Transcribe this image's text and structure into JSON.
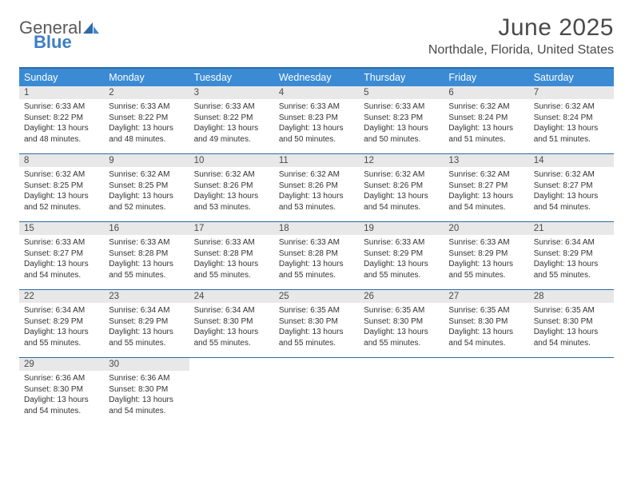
{
  "logo": {
    "line1": "General",
    "line2": "Blue"
  },
  "title": "June 2025",
  "location": "Northdale, Florida, United States",
  "colors": {
    "header_bg": "#3b8bd4",
    "header_text": "#ffffff",
    "border": "#2d6aa6",
    "daynum_bg": "#e8e8e8",
    "text": "#333333",
    "logo_gray": "#5a5a5a",
    "logo_blue": "#3b7fc4"
  },
  "day_labels": [
    "Sunday",
    "Monday",
    "Tuesday",
    "Wednesday",
    "Thursday",
    "Friday",
    "Saturday"
  ],
  "weeks": [
    [
      {
        "n": "1",
        "sr": "Sunrise: 6:33 AM",
        "ss": "Sunset: 8:22 PM",
        "dl": "Daylight: 13 hours and 48 minutes."
      },
      {
        "n": "2",
        "sr": "Sunrise: 6:33 AM",
        "ss": "Sunset: 8:22 PM",
        "dl": "Daylight: 13 hours and 48 minutes."
      },
      {
        "n": "3",
        "sr": "Sunrise: 6:33 AM",
        "ss": "Sunset: 8:22 PM",
        "dl": "Daylight: 13 hours and 49 minutes."
      },
      {
        "n": "4",
        "sr": "Sunrise: 6:33 AM",
        "ss": "Sunset: 8:23 PM",
        "dl": "Daylight: 13 hours and 50 minutes."
      },
      {
        "n": "5",
        "sr": "Sunrise: 6:33 AM",
        "ss": "Sunset: 8:23 PM",
        "dl": "Daylight: 13 hours and 50 minutes."
      },
      {
        "n": "6",
        "sr": "Sunrise: 6:32 AM",
        "ss": "Sunset: 8:24 PM",
        "dl": "Daylight: 13 hours and 51 minutes."
      },
      {
        "n": "7",
        "sr": "Sunrise: 6:32 AM",
        "ss": "Sunset: 8:24 PM",
        "dl": "Daylight: 13 hours and 51 minutes."
      }
    ],
    [
      {
        "n": "8",
        "sr": "Sunrise: 6:32 AM",
        "ss": "Sunset: 8:25 PM",
        "dl": "Daylight: 13 hours and 52 minutes."
      },
      {
        "n": "9",
        "sr": "Sunrise: 6:32 AM",
        "ss": "Sunset: 8:25 PM",
        "dl": "Daylight: 13 hours and 52 minutes."
      },
      {
        "n": "10",
        "sr": "Sunrise: 6:32 AM",
        "ss": "Sunset: 8:26 PM",
        "dl": "Daylight: 13 hours and 53 minutes."
      },
      {
        "n": "11",
        "sr": "Sunrise: 6:32 AM",
        "ss": "Sunset: 8:26 PM",
        "dl": "Daylight: 13 hours and 53 minutes."
      },
      {
        "n": "12",
        "sr": "Sunrise: 6:32 AM",
        "ss": "Sunset: 8:26 PM",
        "dl": "Daylight: 13 hours and 54 minutes."
      },
      {
        "n": "13",
        "sr": "Sunrise: 6:32 AM",
        "ss": "Sunset: 8:27 PM",
        "dl": "Daylight: 13 hours and 54 minutes."
      },
      {
        "n": "14",
        "sr": "Sunrise: 6:32 AM",
        "ss": "Sunset: 8:27 PM",
        "dl": "Daylight: 13 hours and 54 minutes."
      }
    ],
    [
      {
        "n": "15",
        "sr": "Sunrise: 6:33 AM",
        "ss": "Sunset: 8:27 PM",
        "dl": "Daylight: 13 hours and 54 minutes."
      },
      {
        "n": "16",
        "sr": "Sunrise: 6:33 AM",
        "ss": "Sunset: 8:28 PM",
        "dl": "Daylight: 13 hours and 55 minutes."
      },
      {
        "n": "17",
        "sr": "Sunrise: 6:33 AM",
        "ss": "Sunset: 8:28 PM",
        "dl": "Daylight: 13 hours and 55 minutes."
      },
      {
        "n": "18",
        "sr": "Sunrise: 6:33 AM",
        "ss": "Sunset: 8:28 PM",
        "dl": "Daylight: 13 hours and 55 minutes."
      },
      {
        "n": "19",
        "sr": "Sunrise: 6:33 AM",
        "ss": "Sunset: 8:29 PM",
        "dl": "Daylight: 13 hours and 55 minutes."
      },
      {
        "n": "20",
        "sr": "Sunrise: 6:33 AM",
        "ss": "Sunset: 8:29 PM",
        "dl": "Daylight: 13 hours and 55 minutes."
      },
      {
        "n": "21",
        "sr": "Sunrise: 6:34 AM",
        "ss": "Sunset: 8:29 PM",
        "dl": "Daylight: 13 hours and 55 minutes."
      }
    ],
    [
      {
        "n": "22",
        "sr": "Sunrise: 6:34 AM",
        "ss": "Sunset: 8:29 PM",
        "dl": "Daylight: 13 hours and 55 minutes."
      },
      {
        "n": "23",
        "sr": "Sunrise: 6:34 AM",
        "ss": "Sunset: 8:29 PM",
        "dl": "Daylight: 13 hours and 55 minutes."
      },
      {
        "n": "24",
        "sr": "Sunrise: 6:34 AM",
        "ss": "Sunset: 8:30 PM",
        "dl": "Daylight: 13 hours and 55 minutes."
      },
      {
        "n": "25",
        "sr": "Sunrise: 6:35 AM",
        "ss": "Sunset: 8:30 PM",
        "dl": "Daylight: 13 hours and 55 minutes."
      },
      {
        "n": "26",
        "sr": "Sunrise: 6:35 AM",
        "ss": "Sunset: 8:30 PM",
        "dl": "Daylight: 13 hours and 55 minutes."
      },
      {
        "n": "27",
        "sr": "Sunrise: 6:35 AM",
        "ss": "Sunset: 8:30 PM",
        "dl": "Daylight: 13 hours and 54 minutes."
      },
      {
        "n": "28",
        "sr": "Sunrise: 6:35 AM",
        "ss": "Sunset: 8:30 PM",
        "dl": "Daylight: 13 hours and 54 minutes."
      }
    ],
    [
      {
        "n": "29",
        "sr": "Sunrise: 6:36 AM",
        "ss": "Sunset: 8:30 PM",
        "dl": "Daylight: 13 hours and 54 minutes."
      },
      {
        "n": "30",
        "sr": "Sunrise: 6:36 AM",
        "ss": "Sunset: 8:30 PM",
        "dl": "Daylight: 13 hours and 54 minutes."
      },
      null,
      null,
      null,
      null,
      null
    ]
  ]
}
